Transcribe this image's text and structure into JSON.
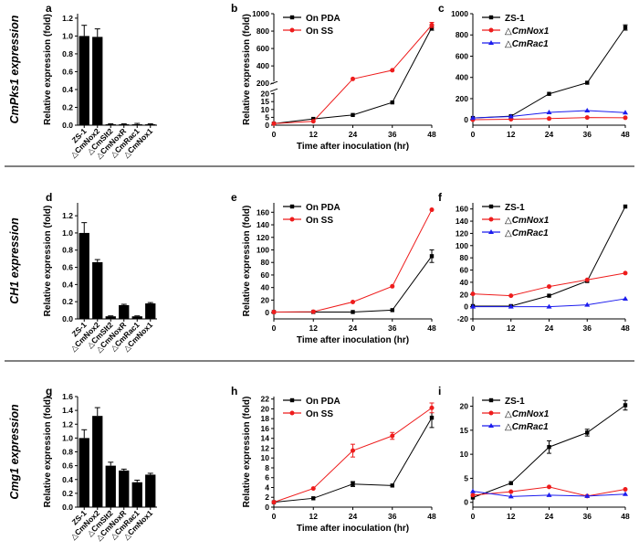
{
  "figure": {
    "colors": {
      "ink": "#000000",
      "red": "#ee1c1c",
      "blue": "#1c1cee"
    },
    "panels": [
      {
        "id": "a",
        "letter": "a",
        "row": 0,
        "col": 0,
        "rowlabel": "CmPks1 expression"
      },
      {
        "id": "b",
        "letter": "b",
        "row": 0,
        "col": 1
      },
      {
        "id": "c",
        "letter": "c",
        "row": 0,
        "col": 2
      },
      {
        "id": "d",
        "letter": "d",
        "row": 1,
        "col": 0,
        "rowlabel": "CH1 expression"
      },
      {
        "id": "e",
        "letter": "e",
        "row": 1,
        "col": 1
      },
      {
        "id": "f",
        "letter": "f",
        "row": 1,
        "col": 2
      },
      {
        "id": "g",
        "letter": "g",
        "row": 2,
        "col": 0,
        "rowlabel": "Cmg1 expression"
      },
      {
        "id": "h",
        "letter": "h",
        "row": 2,
        "col": 1
      },
      {
        "id": "i",
        "letter": "i",
        "row": 2,
        "col": 2
      }
    ]
  },
  "chart_data": [
    {
      "id": "a",
      "type": "bar",
      "ylabel": "Relative expression (fold)",
      "categories": [
        "ZS-1",
        "△CmNox2",
        "△CmSlt2",
        "△CmNoxR",
        "△CmRac1",
        "△CmNox1"
      ],
      "values": [
        1.0,
        0.99,
        0.01,
        0.01,
        0.01,
        0.01
      ],
      "errors": [
        0.12,
        0.09,
        0.005,
        0.005,
        0.01,
        0.005
      ],
      "ylim": [
        0,
        1.25
      ],
      "yticks": [
        0.0,
        0.2,
        0.4,
        0.6,
        0.8,
        1.0,
        1.2
      ],
      "ytick_labels": [
        "0.0",
        "0.2",
        "0.4",
        "0.6",
        "0.8",
        "1.0",
        "1.2"
      ]
    },
    {
      "id": "b",
      "type": "line",
      "ylabel": "Relative expression (fold)",
      "xlabel": "Time after inoculation (hr)",
      "x": [
        0,
        12,
        24,
        36,
        48
      ],
      "xlim": [
        0,
        48
      ],
      "xticks": [
        0,
        12,
        24,
        36,
        48
      ],
      "xtick_labels": [
        "0",
        "12",
        "24",
        "36",
        "48"
      ],
      "ylim": [
        0,
        1000
      ],
      "break": {
        "low": [
          0,
          22
        ],
        "high": [
          200,
          1000
        ],
        "split": 0.31
      },
      "yticks": [
        0,
        5,
        10,
        15,
        20,
        200,
        400,
        600,
        800,
        1000
      ],
      "ytick_labels": [
        "0",
        "5",
        "10",
        "15",
        "20",
        "200",
        "400",
        "600",
        "800",
        "1000"
      ],
      "legend_position": "top-left",
      "series": [
        {
          "name": "On PDA",
          "color": "#000000",
          "values": [
            1,
            4,
            6.5,
            14.5,
            840
          ],
          "errors": [
            0,
            0,
            0,
            0,
            30
          ]
        },
        {
          "name": "On SS",
          "color": "#ee1c1c",
          "values": [
            1,
            2.5,
            250,
            350,
            870
          ],
          "errors": [
            0,
            0,
            0,
            0,
            30
          ]
        }
      ]
    },
    {
      "id": "c",
      "type": "line",
      "x": [
        0,
        12,
        24,
        36,
        48
      ],
      "xlim": [
        0,
        48
      ],
      "xticks": [
        0,
        12,
        24,
        36,
        48
      ],
      "xtick_labels": [
        "0",
        "12",
        "24",
        "36",
        "48"
      ],
      "ylim": [
        -50,
        1000
      ],
      "yticks": [
        0,
        200,
        400,
        600,
        800,
        1000
      ],
      "ytick_labels": [
        "0",
        "200",
        "400",
        "600",
        "800",
        "1000"
      ],
      "legend_position": "top-left",
      "series": [
        {
          "name": "ZS-1",
          "color": "#000000",
          "values": [
            18,
            35,
            245,
            350,
            870
          ],
          "errors": [
            0,
            0,
            0,
            0,
            25
          ]
        },
        {
          "name": "△CmNox1",
          "color": "#ee1c1c",
          "values": [
            2,
            6,
            12,
            22,
            20
          ],
          "errors": [
            0,
            0,
            0,
            0,
            0
          ]
        },
        {
          "name": "△CmRac1",
          "color": "#1c1cee",
          "values": [
            18,
            32,
            70,
            88,
            68
          ],
          "errors": [
            0,
            0,
            0,
            0,
            0
          ]
        }
      ]
    },
    {
      "id": "d",
      "type": "bar",
      "ylabel": "Relative expression (fold)",
      "categories": [
        "ZS-1",
        "△CmNox2",
        "△CmSlt2",
        "△CmNoxR",
        "△CmRac1",
        "△CmNox1"
      ],
      "values": [
        1.0,
        0.66,
        0.03,
        0.16,
        0.03,
        0.18
      ],
      "errors": [
        0.12,
        0.03,
        0.005,
        0.01,
        0.005,
        0.01
      ],
      "ylim": [
        0,
        1.35
      ],
      "yticks": [
        0.0,
        0.2,
        0.4,
        0.6,
        0.8,
        1.0,
        1.2
      ],
      "ytick_labels": [
        "0.0",
        "0.2",
        "0.4",
        "0.6",
        "0.8",
        "1.0",
        "1.2"
      ]
    },
    {
      "id": "e",
      "type": "line",
      "ylabel": "Relative expression (fold)",
      "xlabel": "Time after inoculation (hr)",
      "x": [
        0,
        12,
        24,
        36,
        48
      ],
      "xlim": [
        0,
        48
      ],
      "xticks": [
        0,
        12,
        24,
        36,
        48
      ],
      "xtick_labels": [
        "0",
        "12",
        "24",
        "36",
        "48"
      ],
      "ylim": [
        -10,
        175
      ],
      "yticks": [
        0,
        20,
        40,
        60,
        80,
        100,
        120,
        140,
        160
      ],
      "ytick_labels": [
        "0",
        "20",
        "40",
        "60",
        "80",
        "100",
        "120",
        "140",
        "160"
      ],
      "legend_position": "top-left",
      "series": [
        {
          "name": "On PDA",
          "color": "#000000",
          "values": [
            1,
            1,
            1,
            4,
            90
          ],
          "errors": [
            0,
            0,
            0,
            0,
            10
          ]
        },
        {
          "name": "On SS",
          "color": "#ee1c1c",
          "values": [
            1,
            1.5,
            17,
            42,
            164
          ],
          "errors": [
            0,
            0,
            0,
            0,
            0
          ]
        }
      ]
    },
    {
      "id": "f",
      "type": "line",
      "x": [
        0,
        12,
        24,
        36,
        48
      ],
      "xlim": [
        0,
        48
      ],
      "xticks": [
        0,
        12,
        24,
        36,
        48
      ],
      "xtick_labels": [
        "0",
        "12",
        "24",
        "36",
        "48"
      ],
      "ylim": [
        -20,
        170
      ],
      "yticks": [
        -20,
        0,
        20,
        40,
        60,
        80,
        100,
        120,
        140,
        160
      ],
      "ytick_labels": [
        "-20",
        "0",
        "20",
        "40",
        "60",
        "80",
        "100",
        "120",
        "140",
        "160"
      ],
      "legend_position": "top-left",
      "series": [
        {
          "name": "ZS-1",
          "color": "#000000",
          "values": [
            1,
            1,
            18,
            42,
            164
          ],
          "errors": [
            0,
            0,
            0,
            0,
            0
          ]
        },
        {
          "name": "△CmNox1",
          "color": "#ee1c1c",
          "values": [
            21,
            18,
            33,
            44,
            55
          ],
          "errors": [
            0,
            0,
            0,
            0,
            0
          ]
        },
        {
          "name": "△CmRac1",
          "color": "#1c1cee",
          "values": [
            0,
            0,
            0,
            3,
            13
          ],
          "errors": [
            0,
            0,
            0,
            0,
            0
          ]
        }
      ]
    },
    {
      "id": "g",
      "type": "bar",
      "ylabel": "Relative expression (fold)",
      "categories": [
        "ZS-1",
        "△CmNox2",
        "△CmSlt2",
        "△CmNoxR",
        "△CmRac1",
        "△CmNox1"
      ],
      "values": [
        1.0,
        1.32,
        0.6,
        0.53,
        0.36,
        0.47
      ],
      "errors": [
        0.12,
        0.12,
        0.05,
        0.02,
        0.03,
        0.02
      ],
      "ylim": [
        0,
        1.6
      ],
      "yticks": [
        0.0,
        0.2,
        0.4,
        0.6,
        0.8,
        1.0,
        1.2,
        1.4,
        1.6
      ],
      "ytick_labels": [
        "0.0",
        "0.2",
        "0.4",
        "0.6",
        "0.8",
        "1.0",
        "1.2",
        "1.4",
        "1.6"
      ]
    },
    {
      "id": "h",
      "type": "line",
      "ylabel": "Relative expression (fold)",
      "xlabel": "Time after inoculation (hr)",
      "x": [
        0,
        12,
        24,
        36,
        48
      ],
      "xlim": [
        0,
        48
      ],
      "xticks": [
        0,
        12,
        24,
        36,
        48
      ],
      "xtick_labels": [
        "0",
        "12",
        "24",
        "36",
        "48"
      ],
      "ylim": [
        0,
        22.5
      ],
      "yticks": [
        0,
        2,
        4,
        6,
        8,
        10,
        12,
        14,
        16,
        18,
        20,
        22
      ],
      "ytick_labels": [
        "0",
        "2",
        "4",
        "6",
        "8",
        "10",
        "12",
        "14",
        "16",
        "18",
        "20",
        "22"
      ],
      "legend_position": "top-left",
      "series": [
        {
          "name": "On PDA",
          "color": "#000000",
          "values": [
            1,
            1.8,
            4.7,
            4.4,
            18.2
          ],
          "errors": [
            0,
            0,
            0.5,
            0,
            2
          ]
        },
        {
          "name": "On SS",
          "color": "#ee1c1c",
          "values": [
            1,
            3.8,
            11.5,
            14.5,
            20.2
          ],
          "errors": [
            0,
            0,
            1.3,
            0.7,
            1
          ]
        }
      ]
    },
    {
      "id": "i",
      "type": "line",
      "x": [
        0,
        12,
        24,
        36,
        48
      ],
      "xlim": [
        0,
        48
      ],
      "xticks": [
        0,
        12,
        24,
        36,
        48
      ],
      "xtick_labels": [
        "0",
        "12",
        "24",
        "36",
        "48"
      ],
      "ylim": [
        -1,
        22
      ],
      "yticks": [
        0,
        5,
        10,
        15,
        20
      ],
      "ytick_labels": [
        "0",
        "5",
        "10",
        "15",
        "20"
      ],
      "legend_position": "top-left",
      "series": [
        {
          "name": "ZS-1",
          "color": "#000000",
          "values": [
            1,
            4,
            11.5,
            14.5,
            20.2
          ],
          "errors": [
            0,
            0,
            1.3,
            0.7,
            1
          ]
        },
        {
          "name": "△CmNox1",
          "color": "#ee1c1c",
          "values": [
            1.5,
            2.2,
            3.2,
            1.3,
            2.7
          ],
          "errors": [
            0,
            0,
            0,
            0,
            0
          ]
        },
        {
          "name": "△CmRac1",
          "color": "#1c1cee",
          "values": [
            2.3,
            1.2,
            1.5,
            1.3,
            1.7
          ],
          "errors": [
            0,
            0,
            0,
            0,
            0
          ]
        }
      ]
    }
  ]
}
